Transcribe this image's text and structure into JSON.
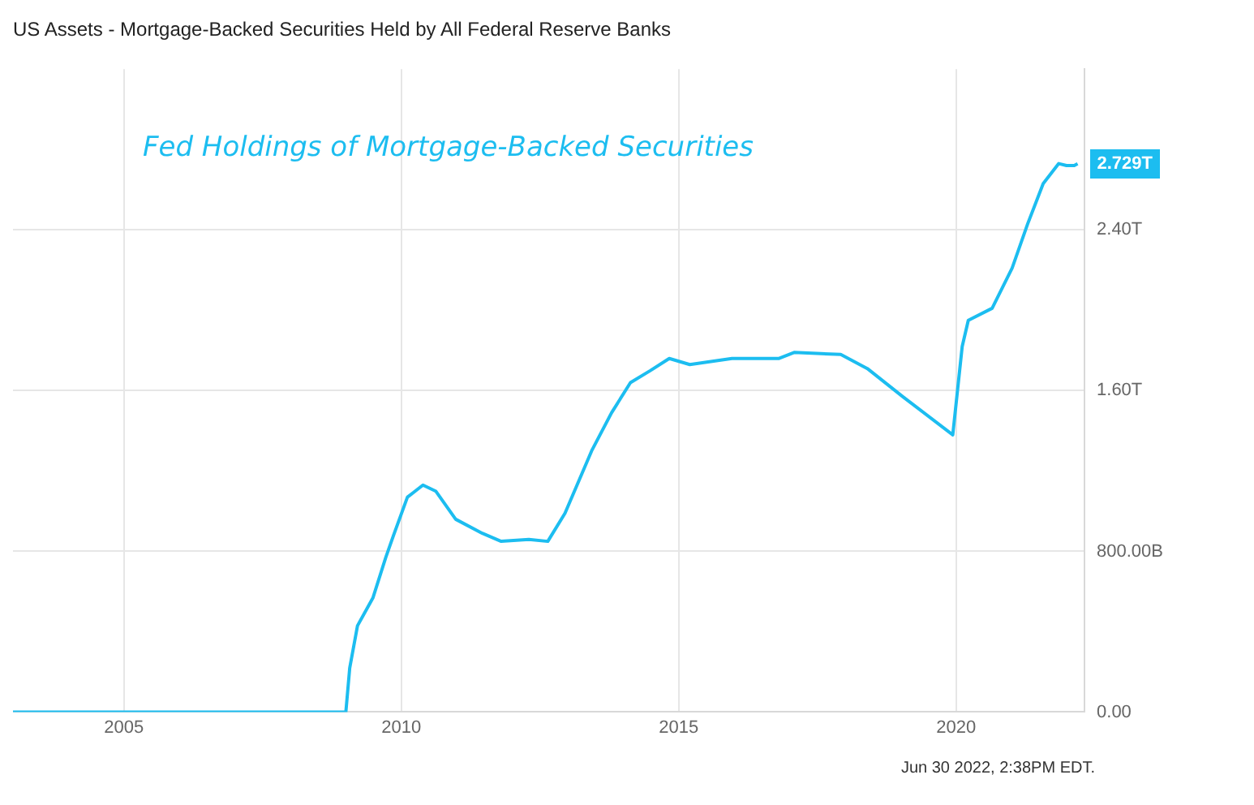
{
  "chart_data": {
    "type": "line",
    "title": "US Assets - Mortgage-Backed Securities Held by All Federal Reserve Banks",
    "x": [
      2003,
      2009.0,
      2009.07,
      2009.21,
      2009.49,
      2009.72,
      2009.86,
      2010.11,
      2010.39,
      2010.62,
      2010.98,
      2011.46,
      2011.8,
      2012.3,
      2012.64,
      2012.95,
      2013.43,
      2013.79,
      2014.13,
      2014.49,
      2014.83,
      2015.2,
      2015.96,
      2016.8,
      2017.08,
      2017.92,
      2018.4,
      2019.04,
      2019.94,
      2020.11,
      2020.22,
      2020.65,
      2021.01,
      2021.29,
      2021.57,
      2021.85,
      2021.99,
      2022.13,
      2022.19
    ],
    "series": [
      {
        "color": "#1cbdf0",
        "values": [
          0,
          0,
          220000000000,
          430000000000,
          570000000000,
          770000000000,
          880000000000,
          1070000000000,
          1130000000000,
          1100000000000,
          960000000000,
          890000000000,
          850000000000,
          860000000000,
          850000000000,
          990000000000,
          1300000000000,
          1490000000000,
          1640000000000,
          1700000000000,
          1760000000000,
          1730000000000,
          1760000000000,
          1760000000000,
          1790000000000,
          1780000000000,
          1710000000000,
          1570000000000,
          1380000000000,
          1820000000000,
          1950000000000,
          2010000000000,
          2210000000000,
          2430000000000,
          2630000000000,
          2730000000000,
          2720000000000,
          2720000000000,
          2729000000000
        ]
      }
    ],
    "xlim": [
      2003,
      2022.3
    ],
    "xticks": [
      2005,
      2010,
      2015,
      2020
    ],
    "ylim": [
      0,
      3200000000000
    ],
    "yticks": [
      {
        "value": 0,
        "label": "0.00"
      },
      {
        "value": 800000000000,
        "label": "800.00B"
      },
      {
        "value": 1600000000000,
        "label": "1.60T"
      },
      {
        "value": 2400000000000,
        "label": "2.40T"
      }
    ],
    "annotations": [
      "Fed Holdings of Mortgage-Backed Securities",
      "Jun 30 2022, 2:38PM EDT.",
      {
        "text": "2.729T",
        "x": 2022.19,
        "y": 2729000000000
      }
    ],
    "grid": true,
    "legend": false,
    "marker": "none",
    "line_style": "solid"
  }
}
